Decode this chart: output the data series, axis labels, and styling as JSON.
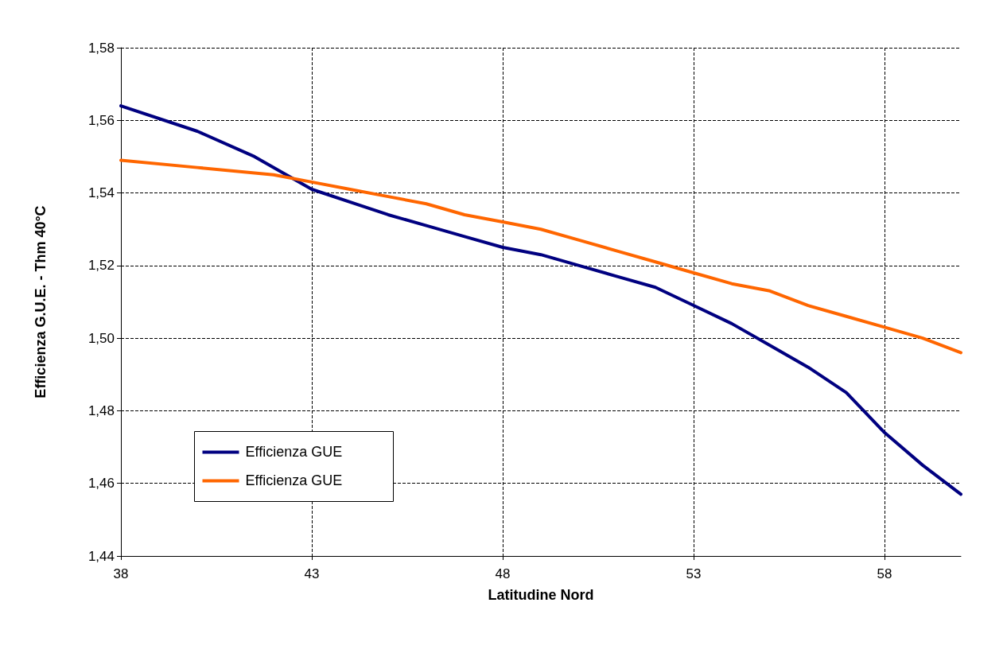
{
  "chart_data": {
    "type": "line",
    "xlabel": "Latitudine Nord",
    "ylabel": "Efficienza G.U.E. - Thm 40°C",
    "xlim": [
      38,
      60
    ],
    "xticks": [
      38,
      43,
      48,
      53,
      58
    ],
    "ylim": [
      1.44,
      1.58
    ],
    "yticks": [
      {
        "value": 1.44,
        "label": "1,44"
      },
      {
        "value": 1.46,
        "label": "1,46"
      },
      {
        "value": 1.48,
        "label": "1,48"
      },
      {
        "value": 1.5,
        "label": "1,50"
      },
      {
        "value": 1.52,
        "label": "1,52"
      },
      {
        "value": 1.54,
        "label": "1,54"
      },
      {
        "value": 1.56,
        "label": "1,56"
      },
      {
        "value": 1.58,
        "label": "1,58"
      }
    ],
    "grid": true,
    "legend": "bottom left",
    "marker": "none",
    "line_style": "solid",
    "series": [
      {
        "name": "Efficienza GUE",
        "color": "#000080",
        "x": [
          38,
          40,
          41.5,
          43,
          45,
          46,
          47,
          48,
          49,
          50,
          51,
          52,
          53,
          54,
          55,
          56,
          57,
          58,
          59,
          60
        ],
        "values": [
          1.564,
          1.557,
          1.55,
          1.541,
          1.534,
          1.531,
          1.528,
          1.525,
          1.523,
          1.52,
          1.517,
          1.514,
          1.509,
          1.504,
          1.498,
          1.492,
          1.485,
          1.474,
          1.465,
          1.457
        ]
      },
      {
        "name": "Efficienza GUE",
        "color": "#ff6600",
        "x": [
          38,
          40,
          42,
          43,
          44,
          45,
          46,
          47,
          48,
          49,
          50,
          51,
          52,
          53,
          54,
          55,
          56,
          57,
          58,
          59,
          60
        ],
        "values": [
          1.549,
          1.547,
          1.545,
          1.543,
          1.541,
          1.539,
          1.537,
          1.534,
          1.532,
          1.53,
          1.527,
          1.524,
          1.521,
          1.518,
          1.515,
          1.513,
          1.509,
          1.506,
          1.503,
          1.5,
          1.496
        ]
      }
    ]
  }
}
